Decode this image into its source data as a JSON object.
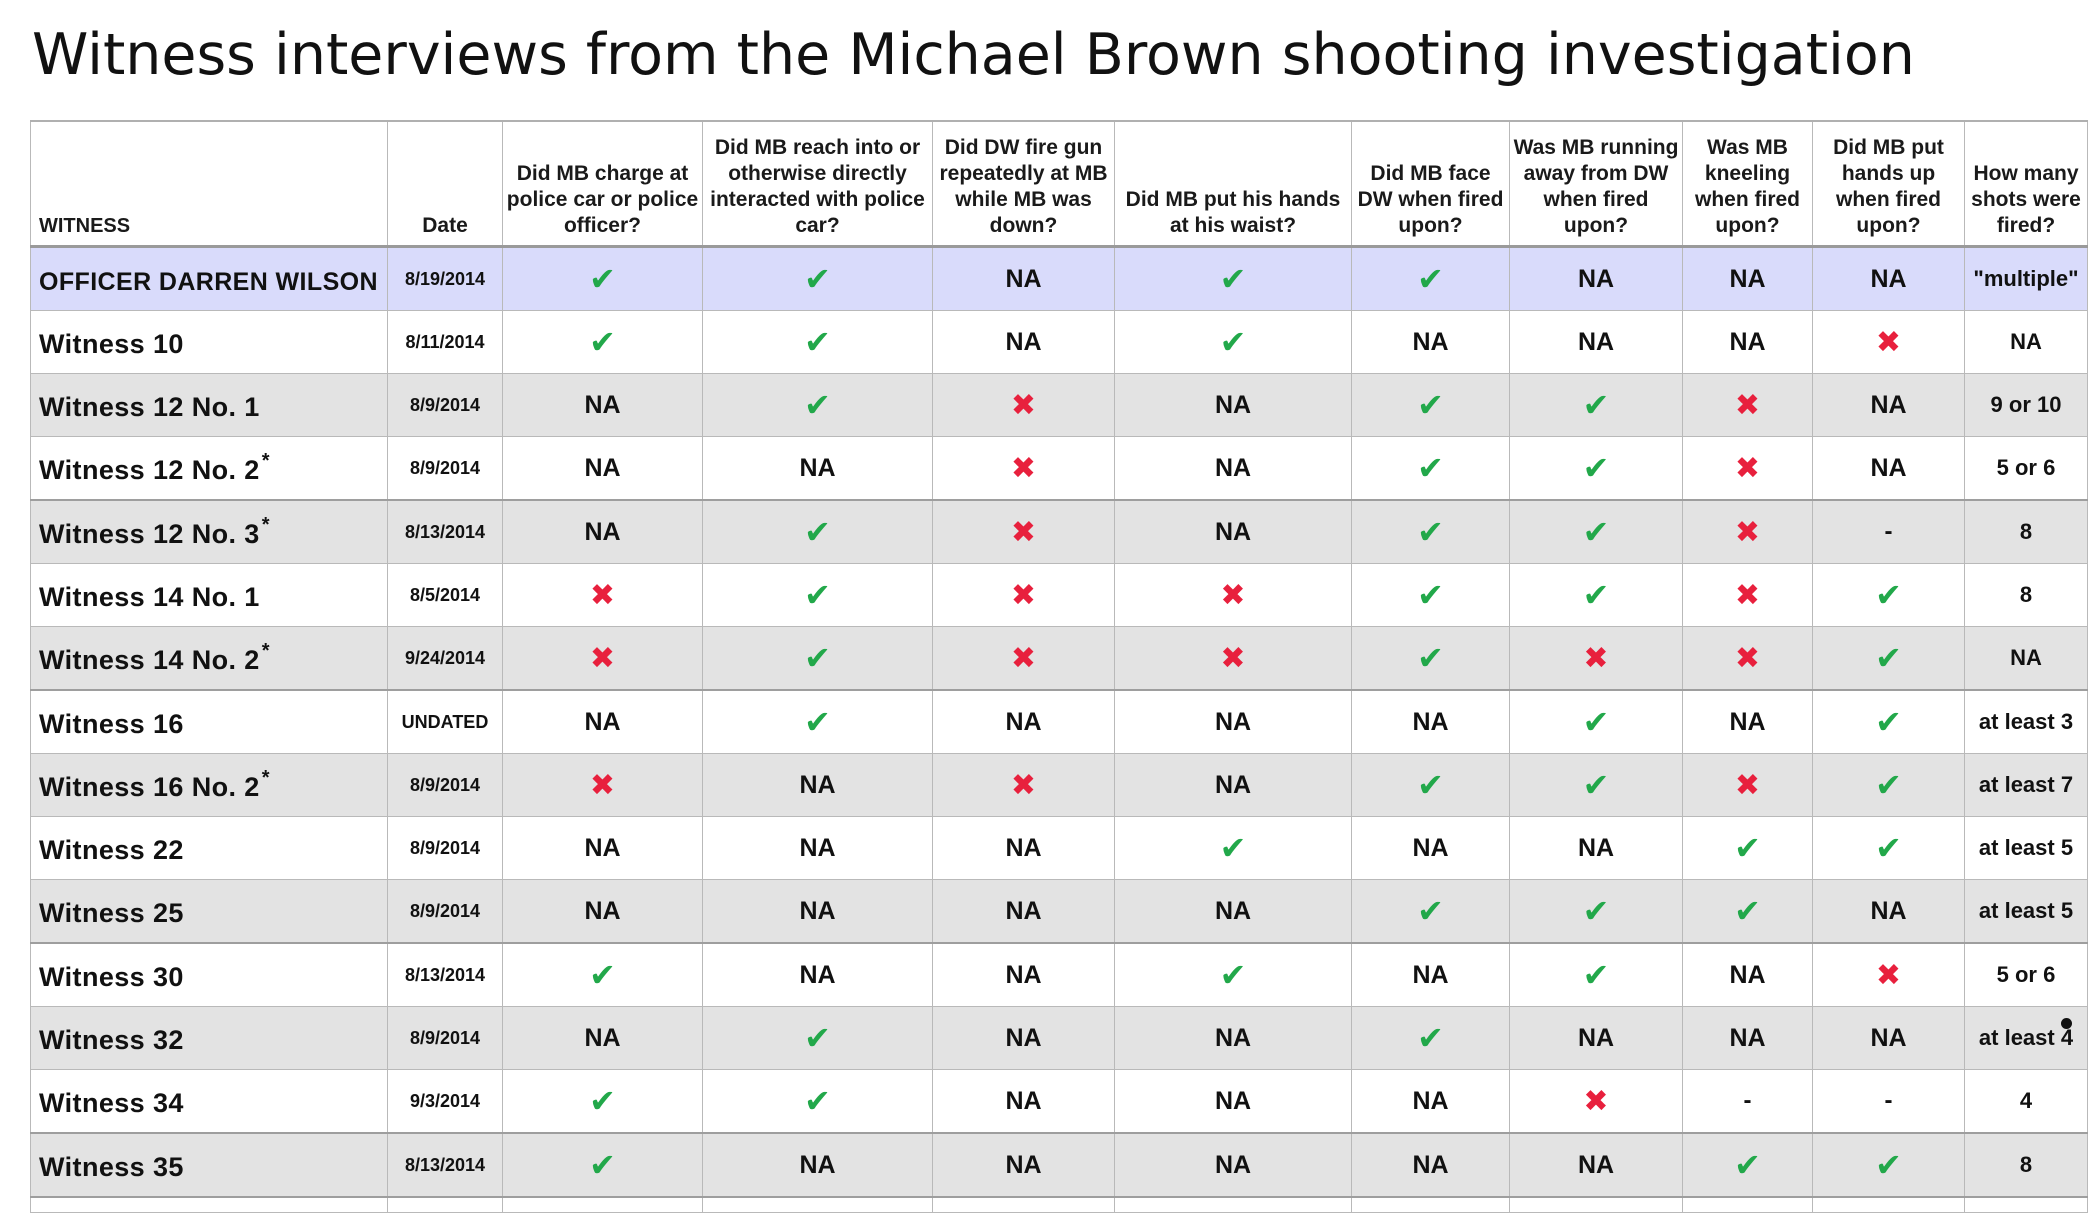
{
  "title": "Witness interviews from the Michael Brown shooting investigation",
  "columns": [
    "WITNESS",
    "Date",
    "Did MB charge at police car or police officer?",
    "Did MB reach into or otherwise directly interacted with police car?",
    "Did DW fire gun repeatedly at MB while MB was down?",
    "Did MB put his hands at his waist?",
    "Did MB face DW when fired upon?",
    "Was MB running away from DW when fired upon?",
    "Was MB kneeling when fired upon?",
    "Did MB put hands up when fired upon?",
    "How many shots were fired?"
  ],
  "symbols": {
    "yes": "✔",
    "no": "✖"
  },
  "colors": {
    "yes": "#22a84a",
    "no": "#e8203d",
    "officer_row": "#d9dbfb",
    "alt_row": "#e3e3e3"
  },
  "chart_data": {
    "type": "table",
    "title": "Witness interviews from the Michael Brown shooting investigation",
    "legend": {
      "yes": "check mark",
      "no": "cross mark",
      "NA": "not addressed",
      "-": "dash"
    },
    "rows": [
      {
        "witness": "OFFICER DARREN WILSON",
        "star": "",
        "date": "8/19/2014",
        "answers": [
          "yes",
          "yes",
          "NA",
          "yes",
          "yes",
          "NA",
          "NA",
          "NA"
        ],
        "shots": "\"multiple\""
      },
      {
        "witness": "Witness 10",
        "star": "",
        "date": "8/11/2014",
        "answers": [
          "yes",
          "yes",
          "NA",
          "yes",
          "NA",
          "NA",
          "NA",
          "no"
        ],
        "shots": "NA"
      },
      {
        "witness": "Witness 12 No. 1",
        "star": "",
        "date": "8/9/2014",
        "answers": [
          "NA",
          "yes",
          "no",
          "NA",
          "yes",
          "yes",
          "no",
          "NA"
        ],
        "shots": "9 or 10"
      },
      {
        "witness": "Witness 12 No. 2",
        "star": "*",
        "date": "8/9/2014",
        "answers": [
          "NA",
          "NA",
          "no",
          "NA",
          "yes",
          "yes",
          "no",
          "NA"
        ],
        "shots": "5 or 6"
      },
      {
        "witness": "Witness 12 No. 3",
        "star": "*",
        "date": "8/13/2014",
        "answers": [
          "NA",
          "yes",
          "no",
          "NA",
          "yes",
          "yes",
          "no",
          "-"
        ],
        "shots": "8"
      },
      {
        "witness": "Witness 14 No. 1",
        "star": "",
        "date": "8/5/2014",
        "answers": [
          "no",
          "yes",
          "no",
          "no",
          "yes",
          "yes",
          "no",
          "yes"
        ],
        "shots": "8"
      },
      {
        "witness": "Witness 14 No. 2",
        "star": "*",
        "date": "9/24/2014",
        "answers": [
          "no",
          "yes",
          "no",
          "no",
          "yes",
          "no",
          "no",
          "yes"
        ],
        "shots": "NA"
      },
      {
        "witness": "Witness 16",
        "star": "",
        "date": "UNDATED",
        "answers": [
          "NA",
          "yes",
          "NA",
          "NA",
          "NA",
          "yes",
          "NA",
          "yes"
        ],
        "shots": "at least 3"
      },
      {
        "witness": "Witness 16 No. 2",
        "star": "*",
        "date": "8/9/2014",
        "answers": [
          "no",
          "NA",
          "no",
          "NA",
          "yes",
          "yes",
          "no",
          "yes"
        ],
        "shots": "at least 7"
      },
      {
        "witness": "Witness 22",
        "star": "",
        "date": "8/9/2014",
        "answers": [
          "NA",
          "NA",
          "NA",
          "yes",
          "NA",
          "NA",
          "yes",
          "yes"
        ],
        "shots": "at least 5"
      },
      {
        "witness": "Witness 25",
        "star": "",
        "date": "8/9/2014",
        "answers": [
          "NA",
          "NA",
          "NA",
          "NA",
          "yes",
          "yes",
          "yes",
          "NA"
        ],
        "shots": "at least 5"
      },
      {
        "witness": "Witness 30",
        "star": "",
        "date": "8/13/2014",
        "answers": [
          "yes",
          "NA",
          "NA",
          "yes",
          "NA",
          "yes",
          "NA",
          "no"
        ],
        "shots": "5 or 6"
      },
      {
        "witness": "Witness 32",
        "star": "",
        "date": "8/9/2014",
        "answers": [
          "NA",
          "yes",
          "NA",
          "NA",
          "yes",
          "NA",
          "NA",
          "NA"
        ],
        "shots": "at least 4"
      },
      {
        "witness": "Witness 34",
        "star": "",
        "date": "9/3/2014",
        "answers": [
          "yes",
          "yes",
          "NA",
          "NA",
          "NA",
          "no",
          "-",
          "-"
        ],
        "shots": "4"
      },
      {
        "witness": "Witness 35",
        "star": "",
        "date": "8/13/2014",
        "answers": [
          "yes",
          "NA",
          "NA",
          "NA",
          "NA",
          "NA",
          "yes",
          "yes"
        ],
        "shots": "8"
      }
    ]
  }
}
